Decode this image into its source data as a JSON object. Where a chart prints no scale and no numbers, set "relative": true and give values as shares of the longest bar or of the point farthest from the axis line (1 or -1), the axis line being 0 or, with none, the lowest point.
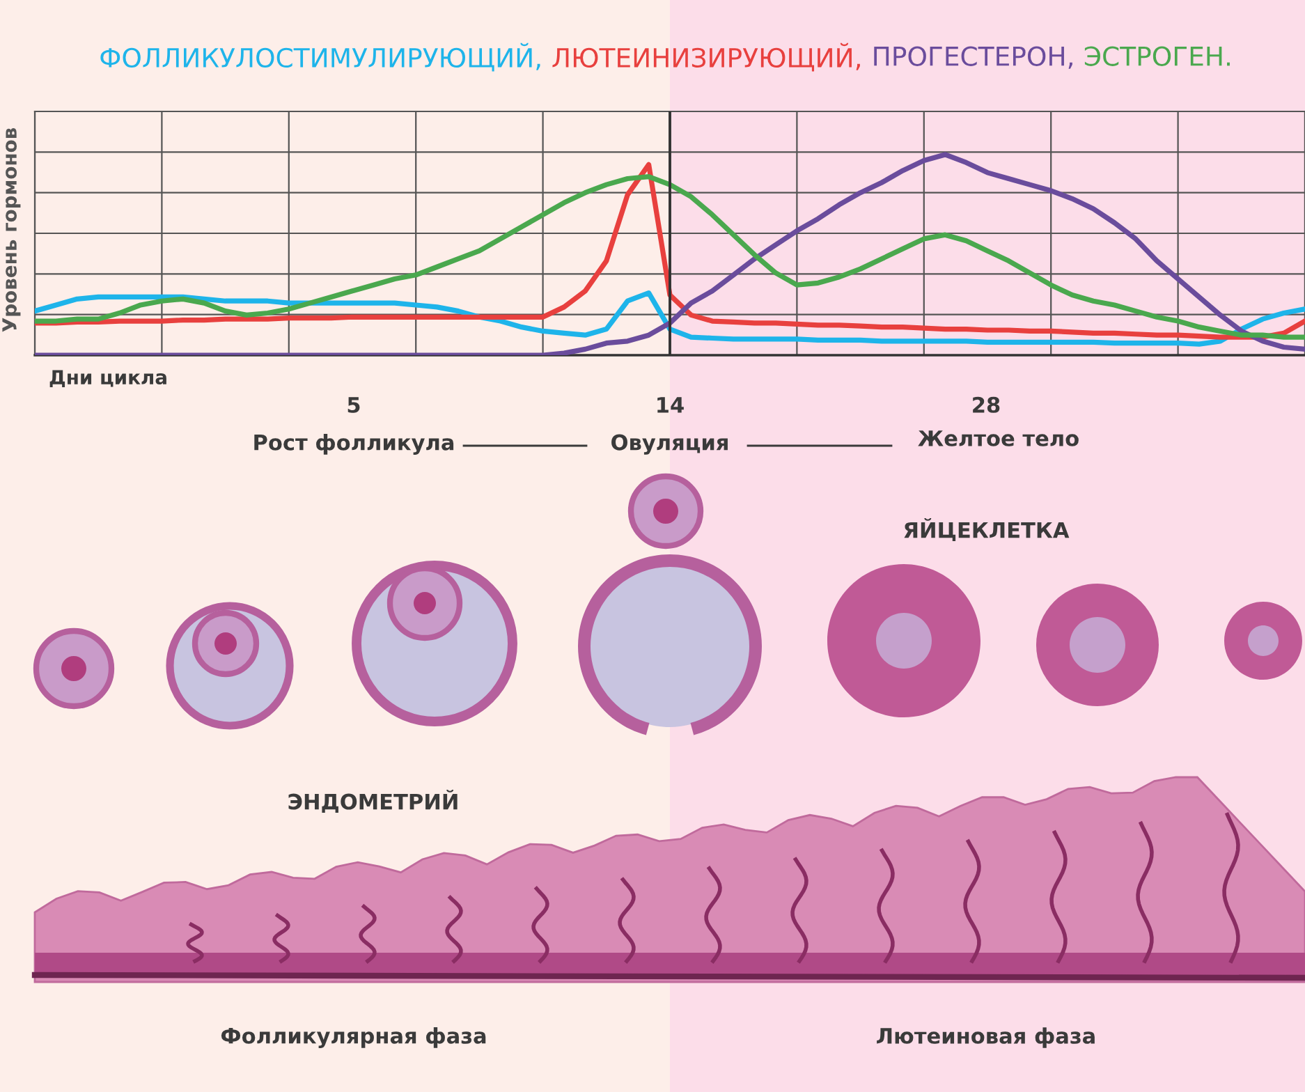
{
  "chart_data": {
    "type": "line",
    "title": null,
    "ylabel": "Уровень гормонов",
    "categories": [
      null,
      null,
      null,
      null,
      null,
      null,
      null,
      null,
      null,
      null,
      null,
      null,
      null,
      null,
      null,
      null,
      null,
      null,
      null,
      null,
      null,
      null,
      null,
      null,
      null,
      null,
      null,
      null,
      null,
      null,
      null,
      null,
      null,
      null,
      null,
      null,
      null,
      null,
      null,
      null,
      null,
      null,
      null,
      null,
      null,
      null,
      null,
      null,
      null,
      null,
      null,
      null,
      null,
      null,
      null,
      null,
      null,
      null,
      null,
      null,
      null
    ],
    "relative": true,
    "series": [
      {
        "name": "ФОЛЛИКУЛОСТИМУЛИРУЮЩИЙ,",
        "color": "#1eb4ea",
        "values": [
          0.22,
          0.25,
          0.28,
          0.29,
          0.29,
          0.29,
          0.29,
          0.29,
          0.28,
          0.27,
          0.27,
          0.27,
          0.26,
          0.26,
          0.26,
          0.26,
          0.26,
          0.26,
          0.25,
          0.24,
          0.22,
          0.19,
          0.17,
          0.14,
          0.12,
          0.11,
          0.1,
          0.13,
          0.27,
          0.31,
          0.13,
          0.09,
          0.085,
          0.08,
          0.08,
          0.08,
          0.08,
          0.075,
          0.075,
          0.075,
          0.07,
          0.07,
          0.07,
          0.07,
          0.07,
          0.065,
          0.065,
          0.065,
          0.065,
          0.065,
          0.065,
          0.06,
          0.06,
          0.06,
          0.06,
          0.055,
          0.07,
          0.13,
          0.18,
          0.21,
          0.23
        ]
      },
      {
        "name": "ЛЮТЕИНИЗИРУЮЩИЙ,",
        "color": "#e8403e",
        "values": [
          0.16,
          0.16,
          0.165,
          0.165,
          0.17,
          0.17,
          0.17,
          0.175,
          0.175,
          0.18,
          0.18,
          0.18,
          0.185,
          0.185,
          0.185,
          0.19,
          0.19,
          0.19,
          0.19,
          0.19,
          0.19,
          0.19,
          0.19,
          0.19,
          0.19,
          0.24,
          0.32,
          0.47,
          0.8,
          0.95,
          0.3,
          0.2,
          0.17,
          0.165,
          0.16,
          0.16,
          0.155,
          0.15,
          0.15,
          0.145,
          0.14,
          0.14,
          0.135,
          0.13,
          0.13,
          0.125,
          0.125,
          0.12,
          0.12,
          0.115,
          0.11,
          0.11,
          0.105,
          0.1,
          0.1,
          0.095,
          0.09,
          0.09,
          0.09,
          0.11,
          0.17
        ]
      },
      {
        "name": "ПРОГЕСТЕРОН,",
        "color": "#6a4c9c",
        "values": [
          0,
          0,
          0,
          0,
          0,
          0,
          0,
          0,
          0,
          0,
          0,
          0,
          0,
          0,
          0,
          0,
          0,
          0,
          0,
          0,
          0,
          0,
          0,
          0,
          0,
          0.01,
          0.03,
          0.06,
          0.07,
          0.1,
          0.16,
          0.26,
          0.32,
          0.4,
          0.48,
          0.55,
          0.62,
          0.68,
          0.75,
          0.81,
          0.86,
          0.92,
          0.97,
          1.0,
          0.96,
          0.91,
          0.88,
          0.85,
          0.82,
          0.78,
          0.73,
          0.66,
          0.58,
          0.47,
          0.38,
          0.29,
          0.2,
          0.12,
          0.07,
          0.04,
          0.03
        ]
      },
      {
        "name": "ЭСТРОГЕН.",
        "color": "#4aa84e",
        "values": [
          0.17,
          0.17,
          0.18,
          0.18,
          0.21,
          0.25,
          0.27,
          0.28,
          0.26,
          0.22,
          0.2,
          0.21,
          0.23,
          0.26,
          0.29,
          0.32,
          0.35,
          0.38,
          0.4,
          0.44,
          0.48,
          0.52,
          0.58,
          0.64,
          0.7,
          0.76,
          0.81,
          0.85,
          0.88,
          0.89,
          0.85,
          0.79,
          0.7,
          0.6,
          0.5,
          0.41,
          0.35,
          0.36,
          0.39,
          0.43,
          0.48,
          0.53,
          0.58,
          0.6,
          0.57,
          0.52,
          0.47,
          0.41,
          0.35,
          0.3,
          0.27,
          0.25,
          0.22,
          0.19,
          0.17,
          0.14,
          0.12,
          0.1,
          0.1,
          0.09,
          0.09
        ]
      }
    ],
    "grid": true,
    "legend": "top",
    "tick_labels": false,
    "annotations": [
      "Дни цикла",
      "5",
      "14",
      "28",
      "Рост фолликула",
      "Овуляция",
      "Желтое тело",
      "ЯЙЦЕКЛЕТКА",
      "ЭНДОМЕТРИЙ",
      "Фолликулярная фаза",
      "Лютеиновая фаза"
    ]
  }
}
